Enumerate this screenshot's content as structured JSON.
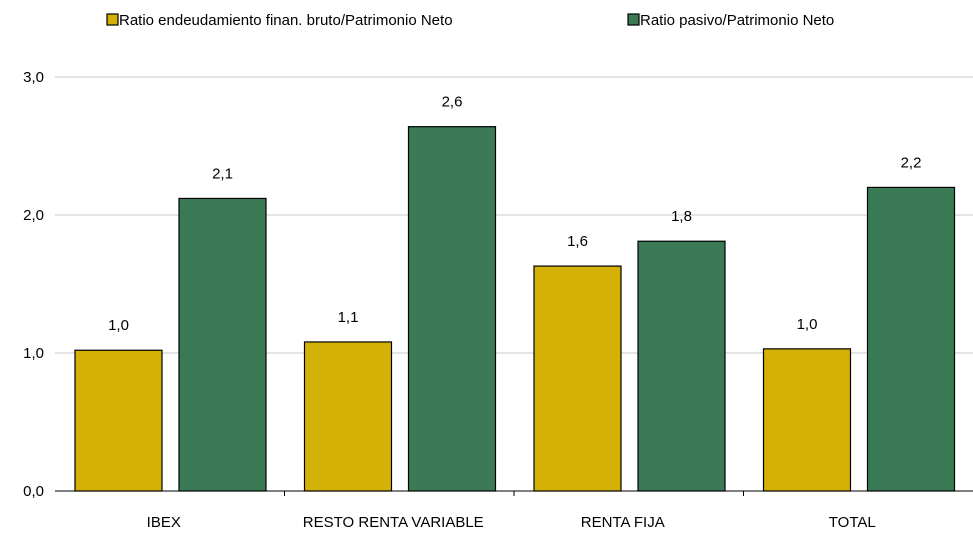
{
  "chart_data": {
    "type": "bar",
    "categories": [
      "IBEX",
      "RESTO RENTA VARIABLE",
      "RENTA FIJA",
      "TOTAL"
    ],
    "series": [
      {
        "name": "Ratio endeudamiento finan. bruto/Patrimonio Neto",
        "color": "#d4b106",
        "values": [
          1.02,
          1.08,
          1.63,
          1.03
        ],
        "labels": [
          "1,0",
          "1,1",
          "1,6",
          "1,0"
        ]
      },
      {
        "name": "Ratio pasivo/Patrimonio Neto",
        "color": "#3a7a55",
        "values": [
          2.12,
          2.64,
          1.81,
          2.2
        ],
        "labels": [
          "2,1",
          "2,6",
          "1,8",
          "2,2"
        ]
      }
    ],
    "ylim": [
      0,
      3
    ],
    "yticks": [
      0,
      1,
      2,
      3
    ],
    "ytick_labels": [
      "0,0",
      "1,0",
      "2,0",
      "3,0"
    ],
    "grid": true,
    "legend_position": "top",
    "title": "",
    "xlabel": "",
    "ylabel": ""
  }
}
